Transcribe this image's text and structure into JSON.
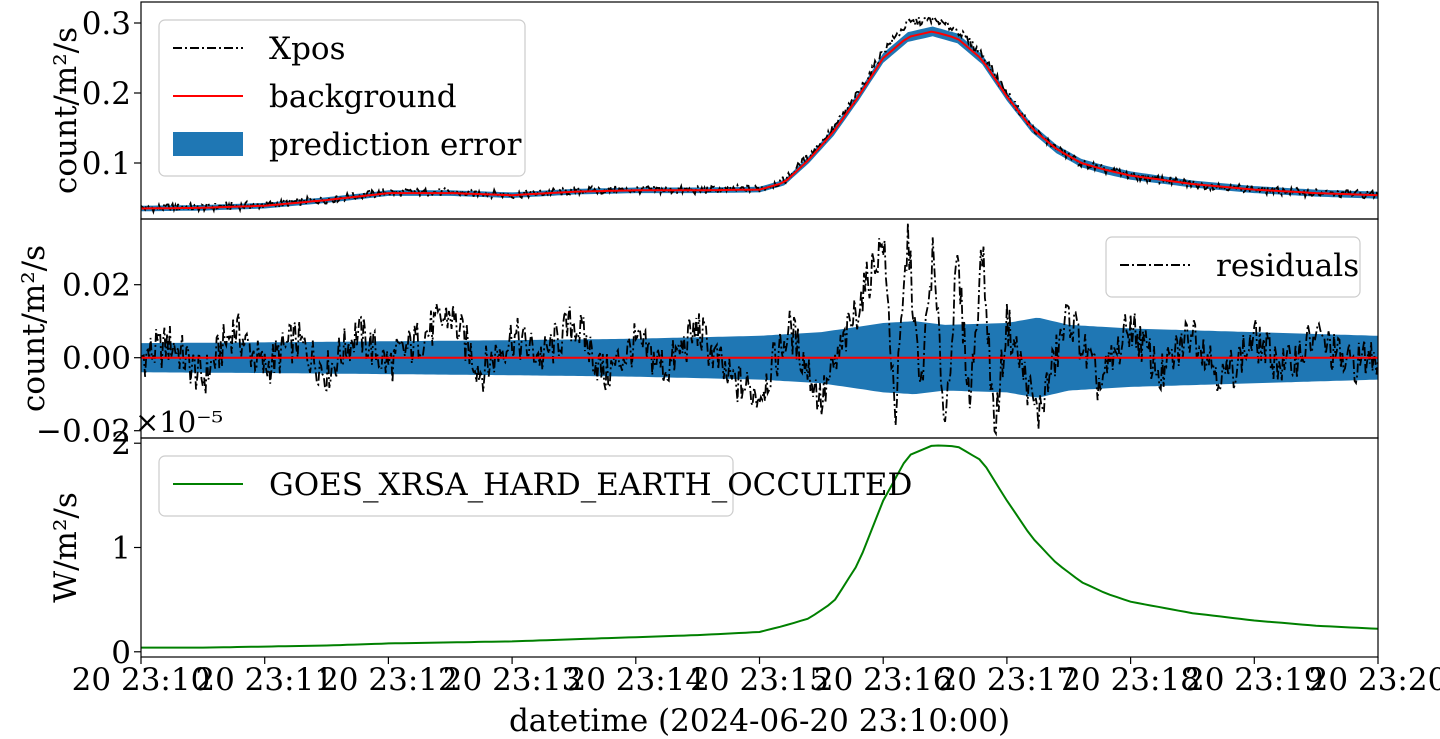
{
  "chart_data": [
    {
      "type": "line",
      "panel": "top",
      "ylabel": "count/m²/s",
      "ylim": [
        0.02,
        0.33
      ],
      "yticks": [
        0.1,
        0.2,
        0.3
      ],
      "ytick_labels": [
        "0.1",
        "0.2",
        "0.3"
      ],
      "legend": "top-left",
      "series": [
        {
          "name": "Xpos",
          "style": "dashdot",
          "color": "#000000",
          "x_minutes": [
            0,
            0.5,
            1,
            1.5,
            2,
            2.5,
            3,
            3.5,
            4,
            4.5,
            5,
            5.2,
            5.4,
            5.6,
            5.8,
            6,
            6.2,
            6.4,
            6.6,
            6.8,
            7,
            7.2,
            7.4,
            7.6,
            7.8,
            8,
            8.5,
            9,
            9.5,
            10
          ],
          "values": [
            0.036,
            0.037,
            0.04,
            0.048,
            0.058,
            0.058,
            0.055,
            0.06,
            0.062,
            0.061,
            0.063,
            0.075,
            0.11,
            0.15,
            0.2,
            0.26,
            0.3,
            0.305,
            0.29,
            0.255,
            0.2,
            0.15,
            0.12,
            0.1,
            0.09,
            0.082,
            0.07,
            0.062,
            0.057,
            0.055
          ]
        },
        {
          "name": "background",
          "style": "solid",
          "color": "#ff0000",
          "x_minutes": [
            0,
            0.5,
            1,
            1.5,
            2,
            2.5,
            3,
            3.5,
            4,
            4.5,
            5,
            5.2,
            5.4,
            5.6,
            5.8,
            6,
            6.2,
            6.4,
            6.6,
            6.8,
            7,
            7.2,
            7.4,
            7.6,
            7.8,
            8,
            8.5,
            9,
            9.5,
            10
          ],
          "values": [
            0.035,
            0.036,
            0.039,
            0.047,
            0.057,
            0.057,
            0.054,
            0.059,
            0.061,
            0.061,
            0.062,
            0.072,
            0.105,
            0.145,
            0.195,
            0.25,
            0.28,
            0.288,
            0.278,
            0.248,
            0.195,
            0.15,
            0.12,
            0.1,
            0.09,
            0.082,
            0.07,
            0.062,
            0.057,
            0.054
          ]
        },
        {
          "name": "prediction error",
          "style": "band",
          "color": "#1f77b4",
          "x_minutes": [
            0,
            0.5,
            1,
            1.5,
            2,
            2.5,
            3,
            3.5,
            4,
            4.5,
            5,
            5.2,
            5.4,
            5.6,
            5.8,
            6,
            6.2,
            6.4,
            6.6,
            6.8,
            7,
            7.2,
            7.4,
            7.6,
            7.8,
            8,
            8.5,
            9,
            9.5,
            10
          ],
          "half_width": [
            0.004,
            0.004,
            0.004,
            0.004,
            0.004,
            0.004,
            0.004,
            0.004,
            0.004,
            0.004,
            0.004,
            0.004,
            0.005,
            0.006,
            0.006,
            0.007,
            0.007,
            0.007,
            0.007,
            0.007,
            0.006,
            0.006,
            0.006,
            0.006,
            0.006,
            0.006,
            0.005,
            0.005,
            0.005,
            0.005
          ]
        }
      ]
    },
    {
      "type": "line",
      "panel": "middle",
      "ylabel": "count/m²/s",
      "ylim": [
        -0.022,
        0.038
      ],
      "yticks": [
        -0.02,
        0.0,
        0.02
      ],
      "ytick_labels": [
        "−0.02",
        "0.00",
        "0.02"
      ],
      "legend": "top-right",
      "series": [
        {
          "name": "residuals",
          "style": "dashdot",
          "color": "#000000",
          "x_minutes": [
            0,
            0.25,
            0.5,
            0.75,
            1,
            1.25,
            1.5,
            1.75,
            2,
            2.25,
            2.5,
            2.75,
            3,
            3.25,
            3.5,
            3.75,
            4,
            4.25,
            4.5,
            4.75,
            5,
            5.25,
            5.5,
            5.75,
            6,
            6.1,
            6.2,
            6.3,
            6.4,
            6.5,
            6.6,
            6.7,
            6.8,
            6.9,
            7,
            7.25,
            7.5,
            7.75,
            8,
            8.25,
            8.5,
            8.75,
            9,
            9.25,
            9.5,
            9.75,
            10
          ],
          "values": [
            0,
            0.004,
            -0.006,
            0.008,
            -0.003,
            0.005,
            -0.004,
            0.007,
            -0.002,
            0.005,
            0.012,
            -0.004,
            0.006,
            0.0,
            0.01,
            -0.005,
            0.004,
            -0.003,
            0.008,
            -0.006,
            -0.01,
            0.008,
            -0.012,
            0.01,
            0.032,
            -0.015,
            0.033,
            -0.01,
            0.028,
            -0.018,
            0.026,
            -0.012,
            0.03,
            -0.02,
            0.01,
            -0.016,
            0.012,
            -0.008,
            0.009,
            -0.005,
            0.008,
            -0.006,
            0.005,
            -0.003,
            0.006,
            -0.002,
            0.001
          ]
        },
        {
          "name": "zero line",
          "style": "solid",
          "color": "#ff0000",
          "x_minutes": [
            0,
            10
          ],
          "values": [
            0,
            0
          ]
        },
        {
          "name": "prediction error",
          "style": "band",
          "color": "#1f77b4",
          "x_minutes": [
            0,
            1,
            2,
            3,
            4,
            5,
            5.5,
            6,
            6.25,
            6.5,
            7,
            7.25,
            7.5,
            8,
            9,
            10
          ],
          "half_width": [
            0.004,
            0.0042,
            0.0045,
            0.0048,
            0.0052,
            0.006,
            0.007,
            0.0095,
            0.01,
            0.009,
            0.0095,
            0.011,
            0.009,
            0.008,
            0.007,
            0.006
          ]
        }
      ]
    },
    {
      "type": "line",
      "panel": "bottom",
      "ylabel": "W/m²/s",
      "offset_label": "×10⁻⁵",
      "ylim": [
        -0.05,
        2.05
      ],
      "yticks": [
        0,
        1,
        2
      ],
      "ytick_labels": [
        "0",
        "1",
        "2"
      ],
      "legend": "top-left",
      "xlabel": "datetime (2024-06-20 23:10:00)",
      "x_range_minutes": [
        0,
        10
      ],
      "xticks_minutes": [
        0,
        1,
        2,
        3,
        4,
        5,
        6,
        7,
        8,
        9,
        10
      ],
      "xtick_labels": [
        "20 23:10",
        "20 23:11",
        "20 23:12",
        "20 23:13",
        "20 23:14",
        "20 23:15",
        "20 23:16",
        "20 23:17",
        "20 23:18",
        "20 23:19",
        "20 23:20"
      ],
      "series": [
        {
          "name": "GOES_XRSA_HARD_EARTH_OCCULTED",
          "style": "solid",
          "color": "#008000",
          "x_minutes": [
            0,
            0.5,
            1,
            1.5,
            2,
            2.5,
            3,
            3.5,
            4,
            4.5,
            5,
            5.2,
            5.4,
            5.6,
            5.8,
            6,
            6.2,
            6.4,
            6.6,
            6.8,
            7,
            7.2,
            7.4,
            7.6,
            7.8,
            8,
            8.5,
            9,
            9.5,
            10
          ],
          "values": [
            0.04,
            0.04,
            0.05,
            0.06,
            0.08,
            0.09,
            0.1,
            0.12,
            0.14,
            0.16,
            0.19,
            0.25,
            0.32,
            0.48,
            0.85,
            1.45,
            1.88,
            1.98,
            1.97,
            1.83,
            1.45,
            1.1,
            0.85,
            0.67,
            0.56,
            0.48,
            0.37,
            0.3,
            0.25,
            0.22
          ]
        }
      ]
    }
  ]
}
